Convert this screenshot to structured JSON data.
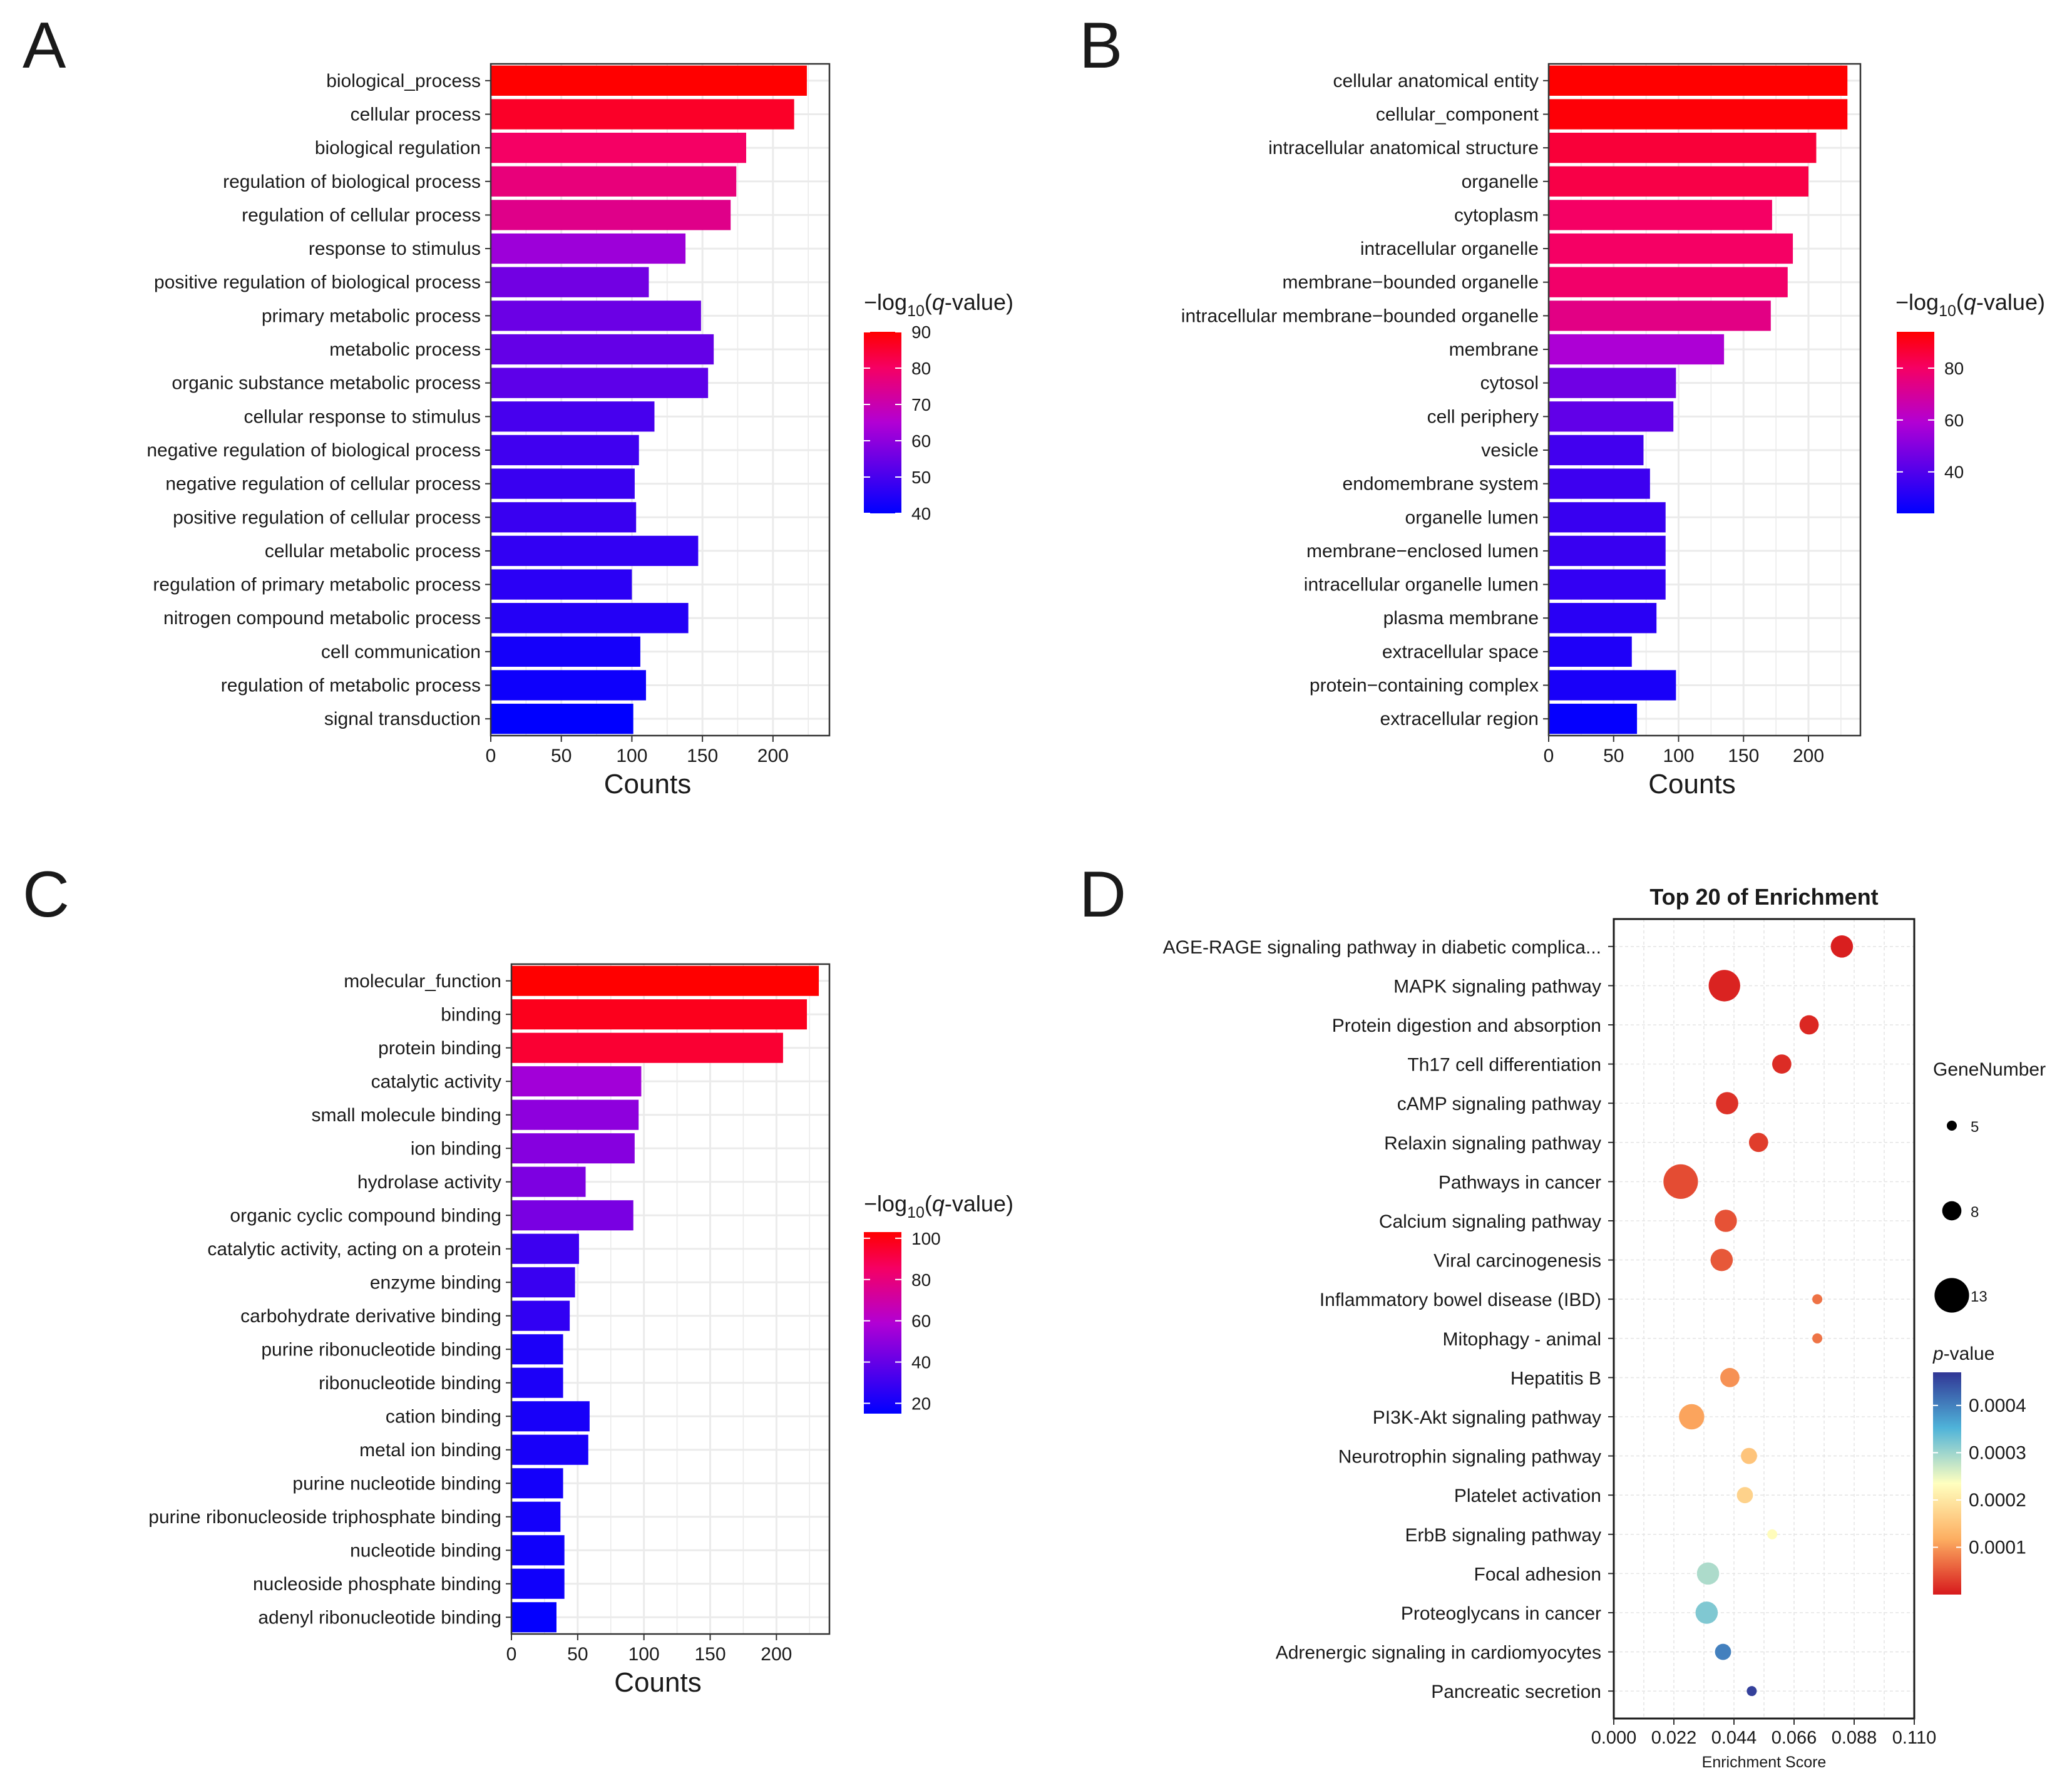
{
  "chart_data": [
    {
      "panel_label": "A",
      "type": "bar",
      "orientation": "horizontal",
      "xlabel": "Counts",
      "xlim": [
        0,
        240
      ],
      "xticks": [
        "0",
        "50",
        "100",
        "150",
        "200"
      ],
      "colorbar": {
        "title_pre": "−log",
        "title_sub": "10",
        "title_post": "(",
        "title_italic": "q",
        "title_end": "-value)",
        "range": [
          40,
          90
        ],
        "ticks": [
          "40",
          "50",
          "60",
          "70",
          "80",
          "90"
        ]
      },
      "categories": [
        "biological_process",
        "cellular process",
        "biological regulation",
        "regulation of biological process",
        "regulation of cellular process",
        "response to stimulus",
        "positive regulation of biological process",
        "primary metabolic process",
        "metabolic process",
        "organic substance metabolic process",
        "cellular response to stimulus",
        "negative regulation of biological process",
        "negative regulation of cellular process",
        "positive regulation of cellular process",
        "cellular metabolic process",
        "regulation of primary metabolic process",
        "nitrogen compound metabolic process",
        "cell communication",
        "regulation of metabolic process",
        "signal transduction"
      ],
      "values": [
        224,
        215,
        181,
        174,
        170,
        138,
        112,
        149,
        158,
        154,
        116,
        105,
        102,
        103,
        147,
        100,
        140,
        106,
        110,
        101
      ],
      "color_values": [
        90,
        86,
        80,
        77,
        75,
        62,
        56,
        55,
        54,
        53,
        50,
        49,
        48,
        48,
        47,
        46,
        45,
        43,
        42,
        40
      ]
    },
    {
      "panel_label": "B",
      "type": "bar",
      "orientation": "horizontal",
      "xlabel": "Counts",
      "xlim": [
        0,
        240
      ],
      "xticks": [
        "0",
        "50",
        "100",
        "150",
        "200"
      ],
      "colorbar": {
        "title_pre": "−log",
        "title_sub": "10",
        "title_post": "(",
        "title_italic": "q",
        "title_end": "-value)",
        "range": [
          24,
          94
        ],
        "ticks": [
          "40",
          "60",
          "80"
        ]
      },
      "categories": [
        "cellular anatomical entity",
        "cellular_component",
        "intracellular anatomical structure",
        "organelle",
        "cytoplasm",
        "intracellular organelle",
        "membrane−bounded organelle",
        "intracellular membrane−bounded organelle",
        "membrane",
        "cytosol",
        "cell periphery",
        "vesicle",
        "endomembrane system",
        "organelle lumen",
        "membrane−enclosed lumen",
        "intracellular organelle lumen",
        "plasma membrane",
        "extracellular space",
        "protein−containing complex",
        "extracellular region"
      ],
      "values": [
        230,
        230,
        206,
        200,
        172,
        188,
        184,
        171,
        135,
        98,
        96,
        73,
        78,
        90,
        90,
        90,
        83,
        64,
        98,
        68
      ],
      "color_values": [
        94,
        93,
        86,
        84,
        80,
        80,
        79,
        74,
        58,
        46,
        43,
        37,
        36,
        35,
        35,
        34,
        32,
        30,
        29,
        25
      ]
    },
    {
      "panel_label": "C",
      "type": "bar",
      "orientation": "horizontal",
      "xlabel": "Counts",
      "xlim": [
        0,
        240
      ],
      "xticks": [
        "0",
        "50",
        "100",
        "150",
        "200"
      ],
      "colorbar": {
        "title_pre": "−log",
        "title_sub": "10",
        "title_post": "(",
        "title_italic": "q",
        "title_end": "-value)",
        "range": [
          15,
          103
        ],
        "ticks": [
          "20",
          "40",
          "60",
          "80",
          "100"
        ]
      },
      "categories": [
        "molecular_function",
        "binding",
        "protein binding",
        "catalytic activity",
        "small molecule binding",
        "ion binding",
        "hydrolase activity",
        "organic cyclic compound binding",
        "catalytic activity, acting on a protein",
        "enzyme binding",
        "carbohydrate derivative binding",
        "purine ribonucleotide binding",
        "ribonucleotide binding",
        "cation binding",
        "metal ion binding",
        "purine nucleotide binding",
        "purine ribonucleoside triphosphate binding",
        "nucleotide binding",
        "nucleoside phosphate binding",
        "adenyl ribonucleotide binding"
      ],
      "values": [
        232,
        223,
        205,
        98,
        96,
        93,
        56,
        92,
        51,
        48,
        44,
        39,
        39,
        59,
        58,
        39,
        37,
        40,
        40,
        34
      ],
      "color_values": [
        103,
        98,
        94,
        55,
        50,
        48,
        46,
        45,
        30,
        29,
        27,
        22,
        22,
        21,
        21,
        20,
        20,
        19,
        19,
        16
      ]
    },
    {
      "panel_label": "D",
      "type": "scatter",
      "title": "Top 20 of  Enrichment",
      "xlabel": "Enrichment Score",
      "xlim": [
        0.0,
        0.11
      ],
      "xticks": [
        "0.000",
        "0.022",
        "0.044",
        "0.066",
        "0.088",
        "0.110"
      ],
      "size_legend": {
        "title": "GeneNumber",
        "labels": [
          "5",
          "8",
          "13"
        ]
      },
      "color_legend": {
        "title_italic": "p",
        "title_end": "-value",
        "range": [
          0.0,
          0.00047
        ],
        "ticks": [
          "0.0001",
          "0.0002",
          "0.0003",
          "0.0004"
        ]
      },
      "categories": [
        "AGE-RAGE signaling pathway in diabetic complica...",
        "MAPK signaling pathway",
        "Protein digestion and absorption",
        "Th17 cell differentiation",
        "cAMP signaling pathway",
        "Relaxin signaling pathway",
        "Pathways in cancer",
        "Calcium signaling pathway",
        "Viral carcinogenesis",
        "Inflammatory bowel disease (IBD)",
        "Mitophagy - animal",
        "Hepatitis B",
        "PI3K-Akt signaling pathway",
        "Neurotrophin signaling pathway",
        "Platelet activation",
        "ErbB signaling pathway",
        "Focal adhesion",
        "Proteoglycans in cancer",
        "Adrenergic signaling in cardiomyocytes",
        "Pancreatic secretion"
      ],
      "x": [
        0.0835,
        0.0405,
        0.0715,
        0.0615,
        0.0415,
        0.053,
        0.0245,
        0.041,
        0.0395,
        0.0745,
        0.0745,
        0.0425,
        0.0285,
        0.0495,
        0.048,
        0.058,
        0.0345,
        0.034,
        0.04,
        0.0505
      ],
      "gene_number": [
        9,
        12,
        8,
        8,
        9,
        8,
        13,
        9,
        9,
        5,
        5,
        8,
        10,
        7,
        7,
        5,
        9,
        9,
        7,
        5
      ],
      "p_values": [
        5e-06,
        8e-06,
        1.2e-05,
        1.5e-05,
        2e-05,
        2.8e-05,
        4e-05,
        4.5e-05,
        5e-05,
        7e-05,
        7.2e-05,
        9.5e-05,
        0.00011,
        0.00015,
        0.00017,
        0.00023,
        0.00029,
        0.00032,
        0.0004,
        0.00046
      ]
    }
  ]
}
